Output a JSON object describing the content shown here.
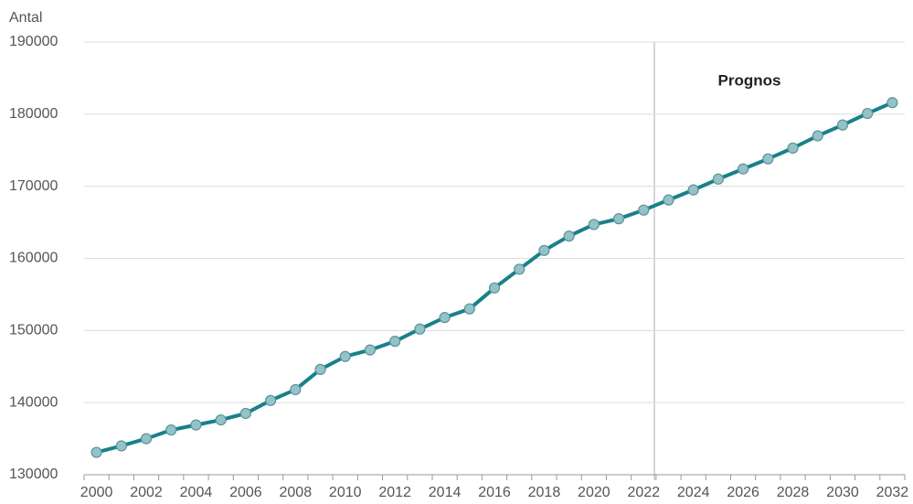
{
  "chart_data": {
    "type": "line",
    "y_axis_label": "Antal",
    "annotation": "Prognos",
    "categories": [
      "2000",
      null,
      "2002",
      null,
      "2004",
      null,
      "2006",
      null,
      "2008",
      null,
      "2010",
      null,
      "2012",
      null,
      "2014",
      null,
      "2016",
      null,
      "2018",
      null,
      "2020",
      null,
      "2022",
      null,
      "2024",
      null,
      "2026",
      null,
      "2028",
      null,
      "2030",
      null,
      "2032"
    ],
    "series": [
      {
        "name": "Antal",
        "color": "#17818a",
        "values": [
          133100,
          134000,
          135000,
          136200,
          136900,
          137600,
          138500,
          140300,
          141800,
          144600,
          146400,
          147300,
          148500,
          150200,
          151800,
          153000,
          155900,
          158500,
          161100,
          163100,
          164700,
          165500,
          166700,
          168100,
          169500,
          171000,
          172400,
          173800,
          175300,
          177000,
          178500,
          180100,
          181600
        ]
      }
    ],
    "ylim": [
      130000,
      190000
    ],
    "yticks": [
      130000,
      140000,
      150000,
      160000,
      170000,
      180000,
      190000
    ],
    "grid": true
  }
}
